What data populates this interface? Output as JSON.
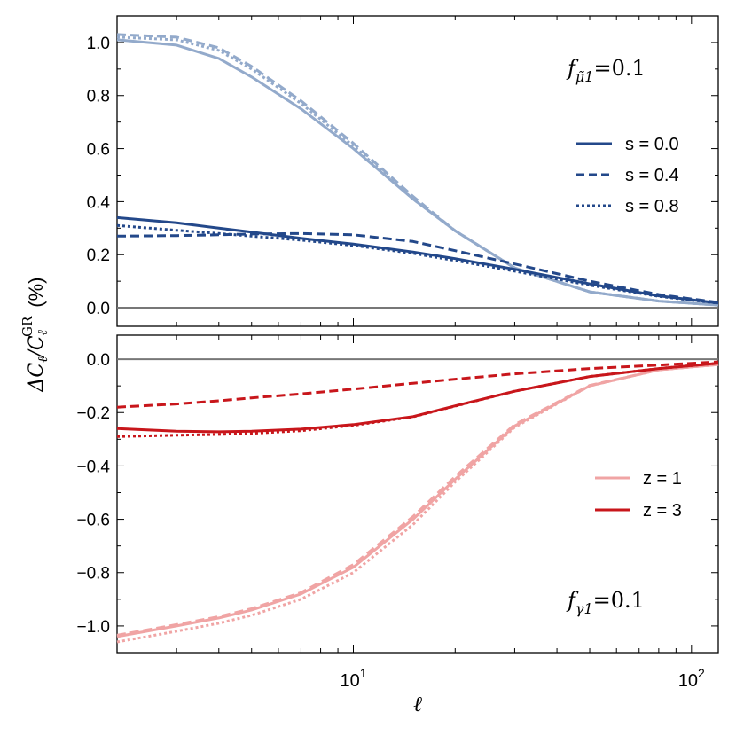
{
  "chart_data": [
    {
      "type": "line",
      "panel": "top",
      "annotation": {
        "prefix": "f",
        "subscript": "μ̃1",
        "suffix": "=0.1"
      },
      "xscale": "log",
      "xlim": [
        2,
        120
      ],
      "ylim": [
        -0.07,
        1.1
      ],
      "yticks": [
        0.0,
        0.2,
        0.4,
        0.6,
        0.8,
        1.0
      ],
      "ytick_labels": [
        "0.0",
        "0.2",
        "0.4",
        "0.6",
        "0.8",
        "1.0"
      ],
      "hline": 0,
      "legend": {
        "placement": "right",
        "entries": [
          {
            "label": "s = 0.0",
            "style": "solid"
          },
          {
            "label": "s = 0.4",
            "style": "dashed"
          },
          {
            "label": "s = 0.8",
            "style": "dotted"
          }
        ]
      },
      "colors": {
        "z1": "#93aacb",
        "z3": "#23488a"
      },
      "series": [
        {
          "name": "z = 1, s = 0.0",
          "style": "solid",
          "shade": "z1",
          "x": [
            2,
            3,
            4,
            5,
            7,
            10,
            15,
            20,
            30,
            50,
            80,
            120
          ],
          "y": [
            1.01,
            0.99,
            0.94,
            0.87,
            0.75,
            0.6,
            0.41,
            0.29,
            0.15,
            0.06,
            0.025,
            0.01
          ]
        },
        {
          "name": "z = 1, s = 0.4",
          "style": "dashed",
          "shade": "z1",
          "x": [
            2,
            3,
            4,
            5,
            7,
            10,
            15,
            20,
            30,
            50,
            80,
            120
          ],
          "y": [
            1.03,
            1.02,
            0.98,
            0.91,
            0.78,
            0.62,
            0.42,
            0.29,
            0.15,
            0.06,
            0.025,
            0.01
          ]
        },
        {
          "name": "z = 1, s = 0.8",
          "style": "dotted",
          "shade": "z1",
          "x": [
            2,
            3,
            4,
            5,
            7,
            10,
            15,
            20,
            30,
            50,
            80,
            120
          ],
          "y": [
            1.02,
            1.01,
            0.97,
            0.9,
            0.77,
            0.61,
            0.41,
            0.29,
            0.15,
            0.06,
            0.025,
            0.01
          ]
        },
        {
          "name": "z = 3, s = 0.0",
          "style": "solid",
          "shade": "z3",
          "x": [
            2,
            3,
            4,
            5,
            7,
            10,
            15,
            20,
            30,
            50,
            80,
            120
          ],
          "y": [
            0.34,
            0.32,
            0.3,
            0.285,
            0.262,
            0.24,
            0.21,
            0.185,
            0.145,
            0.09,
            0.045,
            0.018
          ]
        },
        {
          "name": "z = 3, s = 0.4",
          "style": "dashed",
          "shade": "z3",
          "x": [
            2,
            3,
            4,
            5,
            7,
            10,
            15,
            20,
            30,
            50,
            80,
            120
          ],
          "y": [
            0.27,
            0.272,
            0.275,
            0.278,
            0.28,
            0.275,
            0.25,
            0.215,
            0.165,
            0.1,
            0.05,
            0.02
          ]
        },
        {
          "name": "z = 3, s = 0.8",
          "style": "dotted",
          "shade": "z3",
          "x": [
            2,
            3,
            4,
            5,
            7,
            10,
            15,
            20,
            30,
            50,
            80,
            120
          ],
          "y": [
            0.31,
            0.292,
            0.28,
            0.27,
            0.255,
            0.235,
            0.205,
            0.178,
            0.138,
            0.085,
            0.043,
            0.017
          ]
        }
      ]
    },
    {
      "type": "line",
      "panel": "bottom",
      "annotation": {
        "prefix": "f",
        "subscript": "γ1",
        "suffix": "=0.1"
      },
      "xscale": "log",
      "xlim": [
        2,
        120
      ],
      "ylim": [
        -1.1,
        0.09
      ],
      "yticks": [
        -1.0,
        -0.8,
        -0.6,
        -0.4,
        -0.2,
        0.0
      ],
      "ytick_labels": [
        "−1.0",
        "−0.8",
        "−0.6",
        "−0.4",
        "−0.2",
        "0.0"
      ],
      "hline": 0,
      "xlabel": "ℓ",
      "xtick_labels": [
        {
          "value": 10,
          "base": "10",
          "exp": "1"
        },
        {
          "value": 100,
          "base": "10",
          "exp": "2"
        }
      ],
      "legend": {
        "placement": "right",
        "entries": [
          {
            "label": "z = 1",
            "shade": "z1"
          },
          {
            "label": "z = 3",
            "shade": "z3"
          }
        ]
      },
      "colors": {
        "z1": "#f0a4a4",
        "z3": "#c8161b"
      },
      "series": [
        {
          "name": "z = 1, s = 0.0",
          "style": "solid",
          "shade": "z1",
          "x": [
            2,
            3,
            4,
            5,
            7,
            10,
            15,
            20,
            30,
            50,
            80,
            120
          ],
          "y": [
            -1.04,
            -1.0,
            -0.97,
            -0.94,
            -0.88,
            -0.78,
            -0.6,
            -0.45,
            -0.25,
            -0.1,
            -0.04,
            -0.02
          ]
        },
        {
          "name": "z = 1, s = 0.4",
          "style": "dashed",
          "shade": "z1",
          "x": [
            2,
            3,
            4,
            5,
            7,
            10,
            15,
            20,
            30,
            50,
            80,
            120
          ],
          "y": [
            -1.035,
            -0.995,
            -0.965,
            -0.935,
            -0.875,
            -0.77,
            -0.59,
            -0.44,
            -0.245,
            -0.098,
            -0.04,
            -0.02
          ]
        },
        {
          "name": "z = 1, s = 0.8",
          "style": "dotted",
          "shade": "z1",
          "x": [
            2,
            3,
            4,
            5,
            7,
            10,
            15,
            20,
            30,
            50,
            80,
            120
          ],
          "y": [
            -1.06,
            -1.02,
            -0.99,
            -0.96,
            -0.9,
            -0.8,
            -0.62,
            -0.46,
            -0.255,
            -0.1,
            -0.04,
            -0.02
          ]
        },
        {
          "name": "z = 3, s = 0.0",
          "style": "solid",
          "shade": "z3",
          "x": [
            2,
            3,
            4,
            5,
            7,
            10,
            15,
            20,
            30,
            50,
            80,
            120
          ],
          "y": [
            -0.26,
            -0.27,
            -0.272,
            -0.27,
            -0.262,
            -0.245,
            -0.215,
            -0.175,
            -0.12,
            -0.065,
            -0.035,
            -0.015
          ]
        },
        {
          "name": "z = 3, s = 0.4",
          "style": "dashed",
          "shade": "z3",
          "x": [
            2,
            3,
            4,
            5,
            7,
            10,
            15,
            20,
            30,
            50,
            80,
            120
          ],
          "y": [
            -0.18,
            -0.168,
            -0.156,
            -0.145,
            -0.13,
            -0.112,
            -0.09,
            -0.075,
            -0.055,
            -0.035,
            -0.022,
            -0.01
          ]
        },
        {
          "name": "z = 3, s = 0.8",
          "style": "dotted",
          "shade": "z3",
          "x": [
            2,
            3,
            4,
            5,
            7,
            10,
            15,
            20,
            30,
            50,
            80,
            120
          ],
          "y": [
            -0.29,
            -0.285,
            -0.282,
            -0.278,
            -0.268,
            -0.248,
            -0.216,
            -0.176,
            -0.12,
            -0.065,
            -0.035,
            -0.015
          ]
        }
      ]
    }
  ],
  "shared": {
    "ylabel": {
      "delta": "ΔC",
      "sub": "ℓ",
      "slash": "/C",
      "sub2": "ℓ",
      "sup": "GR",
      "unit": "(%)"
    }
  }
}
